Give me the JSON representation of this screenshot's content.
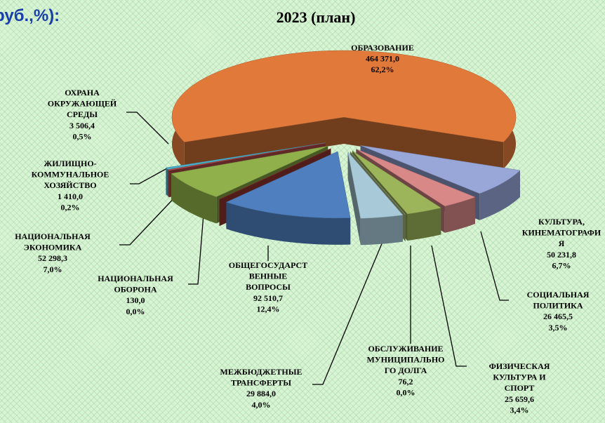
{
  "header": {
    "text": "руб.,%):"
  },
  "chart_data": {
    "type": "pie",
    "title": "2023 (план)",
    "categories": [
      [
        "ОБРАЗОВАНИЕ"
      ],
      [
        "КУЛЬТУРА,",
        "КИНЕМАТОГРАФИ",
        "Я"
      ],
      [
        "СОЦИАЛЬНАЯ",
        "ПОЛИТИКА"
      ],
      [
        "ФИЗИЧЕСКАЯ",
        "КУЛЬТУРА И",
        "СПОРТ"
      ],
      [
        "ОБСЛУЖИВАНИЕ",
        "МУНИЦИПАЛЬНО",
        "ГО ДОЛГА"
      ],
      [
        "МЕЖБЮДЖЕТНЫЕ",
        "ТРАНСФЕРТЫ"
      ],
      [
        "ОБЩЕГОСУДАРСТ",
        "ВЕННЫЕ",
        "ВОПРОСЫ"
      ],
      [
        "НАЦИОНАЛЬНАЯ",
        "ОБОРОНА"
      ],
      [
        "НАЦИОНАЛЬНАЯ",
        "ЭКОНОМИКА"
      ],
      [
        "ЖИЛИЩНО-",
        "КОММУНАЛЬНОЕ",
        "ХОЗЯЙСТВО"
      ],
      [
        "ОХРАНА",
        "ОКРУЖАЮЩЕЙ",
        "СРЕДЫ"
      ]
    ],
    "values": [
      464371.0,
      50231.8,
      26465.5,
      25659.6,
      76.2,
      29884.0,
      92510.7,
      130.0,
      52298.3,
      1410.0,
      3506.4
    ],
    "value_labels": [
      "464 371,0",
      "50 231,8",
      "26 465,5",
      "25 659,6",
      "76,2",
      "29 884,0",
      "92 510,7",
      "130,0",
      "52 298,3",
      "1 410,0",
      "3 506,4"
    ],
    "percents": [
      62.2,
      6.7,
      3.5,
      3.4,
      0.0,
      4.0,
      12.4,
      0.0,
      7.0,
      0.2,
      0.5
    ],
    "percent_labels": [
      "62,2%",
      "6,7%",
      "3,5%",
      "3,4%",
      "0,0%",
      "4,0%",
      "12,4%",
      "0,0%",
      "7,0%",
      "0,2%",
      "0,5%"
    ],
    "colors": [
      "#e0793a",
      "#98a6d8",
      "#d98888",
      "#9cb45a",
      "#b8c890",
      "#a8cad8",
      "#4f7fbf",
      "#a03a36",
      "#8fb04a",
      "#c0504d",
      "#4bacc6"
    ]
  }
}
